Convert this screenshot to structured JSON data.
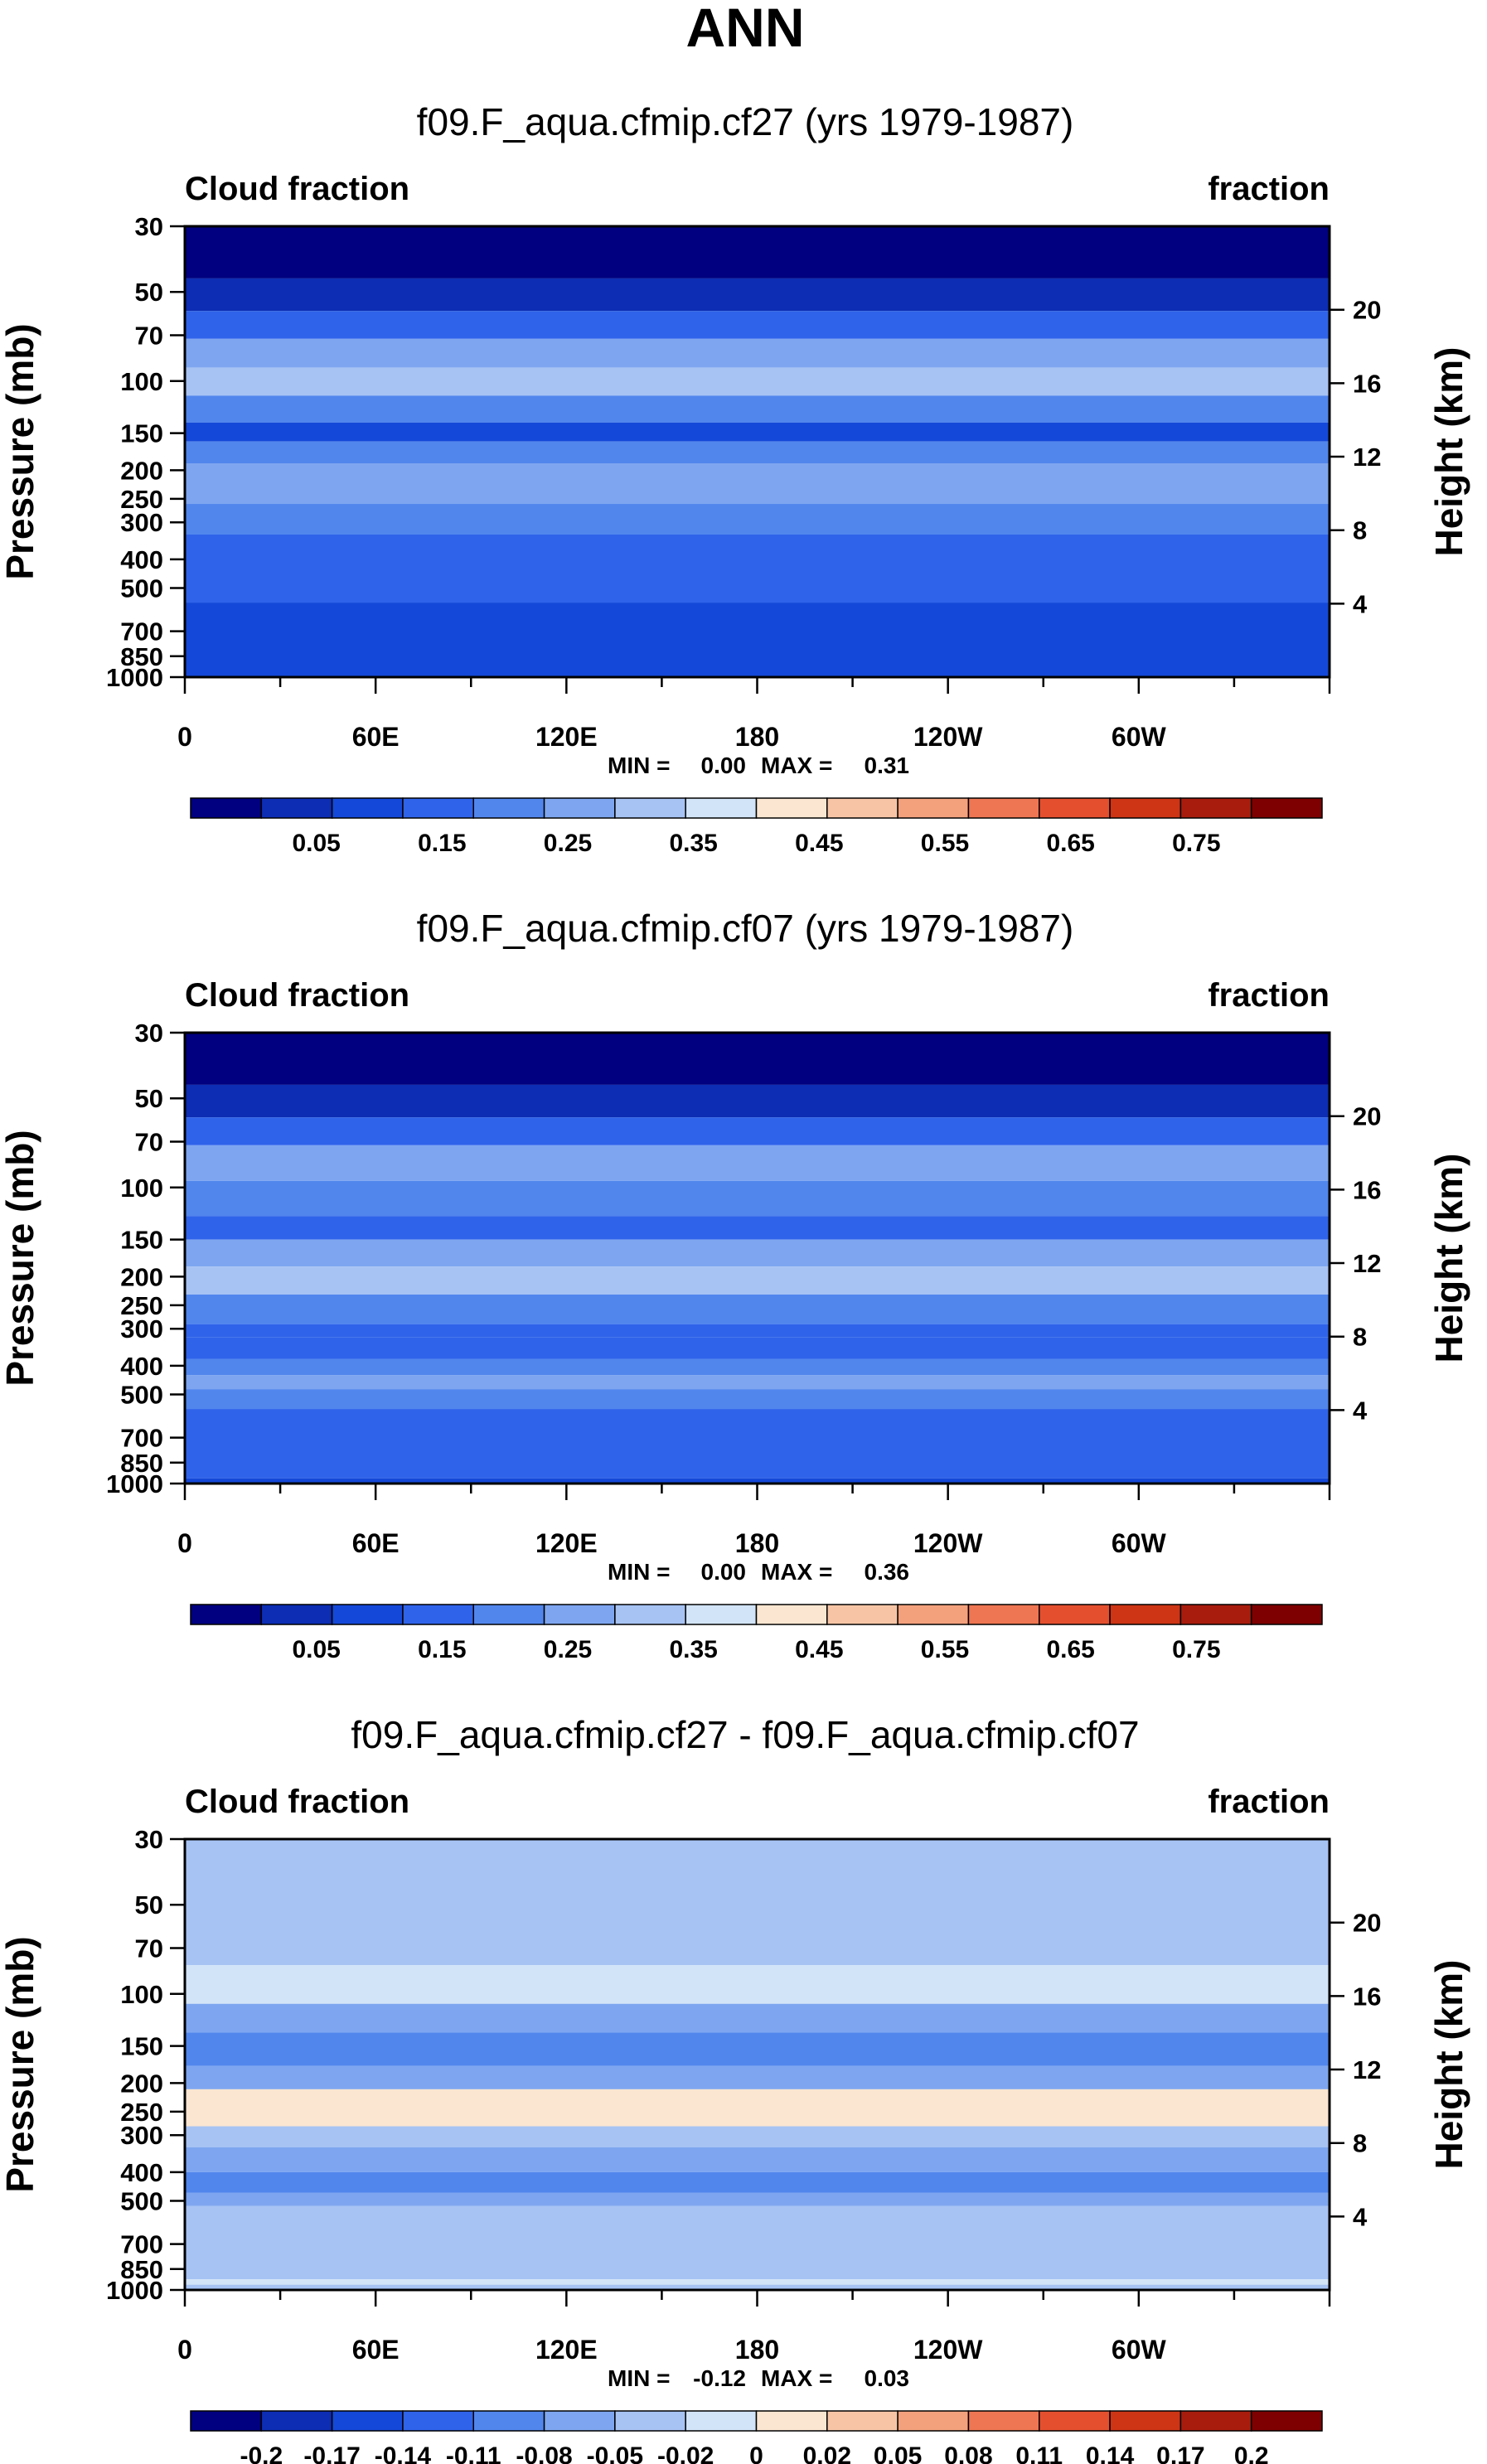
{
  "figure_title": "ANN",
  "chart_data": [
    {
      "type": "heatmap",
      "title": "f09.F_aqua.cfmip.cf27 (yrs 1979-1987)",
      "left_label": "Cloud fraction",
      "right_label": "fraction",
      "ylabel": "Pressure (mb)",
      "ylabel_right": "Height (km)",
      "x_ticks": [
        "0",
        "60E",
        "120E",
        "180",
        "120W",
        "60W"
      ],
      "y_ticks": [
        "30",
        "50",
        "70",
        "100",
        "150",
        "200",
        "250",
        "300",
        "400",
        "500",
        "700",
        "850",
        "1000"
      ],
      "height_ticks": [
        "20",
        "16",
        "12",
        "8",
        "4"
      ],
      "stats": {
        "min_label": "MIN =",
        "min": "0.00",
        "max_label": "MAX =",
        "max": "0.31"
      },
      "colorbar": {
        "labels": [
          "0.05",
          "0.15",
          "0.25",
          "0.35",
          "0.45",
          "0.55",
          "0.65",
          "0.75"
        ],
        "colors": [
          "#000080",
          "#0c2db4",
          "#1448d8",
          "#2f63ea",
          "#5186ed",
          "#7ea6f0",
          "#a7c3f4",
          "#d2e4f7",
          "#fbe6d1",
          "#f7c5a6",
          "#f3a17d",
          "#ee7652",
          "#e4502e",
          "#cd3515",
          "#a81c0d",
          "#7e0000"
        ]
      },
      "layers": [
        {
          "from": 30,
          "to": 45,
          "level": 0
        },
        {
          "from": 45,
          "to": 58,
          "level": 1
        },
        {
          "from": 58,
          "to": 72,
          "level": 3
        },
        {
          "from": 72,
          "to": 90,
          "level": 5
        },
        {
          "from": 90,
          "to": 112,
          "level": 6
        },
        {
          "from": 112,
          "to": 138,
          "level": 4
        },
        {
          "from": 138,
          "to": 160,
          "level": 2
        },
        {
          "from": 160,
          "to": 190,
          "level": 4
        },
        {
          "from": 190,
          "to": 260,
          "level": 5
        },
        {
          "from": 260,
          "to": 330,
          "level": 4
        },
        {
          "from": 330,
          "to": 560,
          "level": 3
        },
        {
          "from": 560,
          "to": 1000,
          "level": 2
        }
      ]
    },
    {
      "type": "heatmap",
      "title": "f09.F_aqua.cfmip.cf07 (yrs 1979-1987)",
      "left_label": "Cloud fraction",
      "right_label": "fraction",
      "ylabel": "Pressure (mb)",
      "ylabel_right": "Height (km)",
      "x_ticks": [
        "0",
        "60E",
        "120E",
        "180",
        "120W",
        "60W"
      ],
      "y_ticks": [
        "30",
        "50",
        "70",
        "100",
        "150",
        "200",
        "250",
        "300",
        "400",
        "500",
        "700",
        "850",
        "1000"
      ],
      "height_ticks": [
        "20",
        "16",
        "12",
        "8",
        "4"
      ],
      "stats": {
        "min_label": "MIN =",
        "min": "0.00",
        "max_label": "MAX =",
        "max": "0.36"
      },
      "colorbar": {
        "labels": [
          "0.05",
          "0.15",
          "0.25",
          "0.35",
          "0.45",
          "0.55",
          "0.65",
          "0.75"
        ],
        "colors": [
          "#000080",
          "#0c2db4",
          "#1448d8",
          "#2f63ea",
          "#5186ed",
          "#7ea6f0",
          "#a7c3f4",
          "#d2e4f7",
          "#fbe6d1",
          "#f7c5a6",
          "#f3a17d",
          "#ee7652",
          "#e4502e",
          "#cd3515",
          "#a81c0d",
          "#7e0000"
        ]
      },
      "layers": [
        {
          "from": 30,
          "to": 45,
          "level": 0
        },
        {
          "from": 45,
          "to": 58,
          "level": 1
        },
        {
          "from": 58,
          "to": 72,
          "level": 3
        },
        {
          "from": 72,
          "to": 95,
          "level": 5
        },
        {
          "from": 95,
          "to": 125,
          "level": 4
        },
        {
          "from": 125,
          "to": 150,
          "level": 3
        },
        {
          "from": 150,
          "to": 185,
          "level": 5
        },
        {
          "from": 185,
          "to": 230,
          "level": 6
        },
        {
          "from": 230,
          "to": 290,
          "level": 4
        },
        {
          "from": 290,
          "to": 320,
          "level": 3
        },
        {
          "from": 320,
          "to": 380,
          "level": 3
        },
        {
          "from": 380,
          "to": 430,
          "level": 4
        },
        {
          "from": 430,
          "to": 480,
          "level": 5
        },
        {
          "from": 480,
          "to": 560,
          "level": 4
        },
        {
          "from": 560,
          "to": 960,
          "level": 3
        },
        {
          "from": 960,
          "to": 1000,
          "level": 2
        }
      ]
    },
    {
      "type": "heatmap",
      "title": "f09.F_aqua.cfmip.cf27 - f09.F_aqua.cfmip.cf07",
      "left_label": "Cloud fraction",
      "right_label": "fraction",
      "ylabel": "Pressure (mb)",
      "ylabel_right": "Height (km)",
      "x_ticks": [
        "0",
        "60E",
        "120E",
        "180",
        "120W",
        "60W"
      ],
      "y_ticks": [
        "30",
        "50",
        "70",
        "100",
        "150",
        "200",
        "250",
        "300",
        "400",
        "500",
        "700",
        "850",
        "1000"
      ],
      "height_ticks": [
        "20",
        "16",
        "12",
        "8",
        "4"
      ],
      "stats": {
        "min_label": "MIN =",
        "min": "-0.12",
        "max_label": "MAX =",
        "max": "0.03"
      },
      "colorbar": {
        "labels": [
          "-0.2",
          "-0.17",
          "-0.14",
          "-0.11",
          "-0.08",
          "-0.05",
          "-0.02",
          "0",
          "0.02",
          "0.05",
          "0.08",
          "0.11",
          "0.14",
          "0.17",
          "0.2"
        ],
        "colors": [
          "#000080",
          "#0c2db4",
          "#1448d8",
          "#2f63ea",
          "#5186ed",
          "#7ea6f0",
          "#a7c3f4",
          "#d2e4f7",
          "#fbe6d1",
          "#f7c5a6",
          "#f3a17d",
          "#ee7652",
          "#e4502e",
          "#cd3515",
          "#a81c0d",
          "#7e0000"
        ]
      },
      "layers": [
        {
          "from": 30,
          "to": 80,
          "level": 6
        },
        {
          "from": 80,
          "to": 108,
          "level": 7
        },
        {
          "from": 108,
          "to": 135,
          "level": 5
        },
        {
          "from": 135,
          "to": 175,
          "level": 4
        },
        {
          "from": 175,
          "to": 210,
          "level": 5
        },
        {
          "from": 210,
          "to": 280,
          "level": 8
        },
        {
          "from": 280,
          "to": 330,
          "level": 6
        },
        {
          "from": 330,
          "to": 400,
          "level": 5
        },
        {
          "from": 400,
          "to": 470,
          "level": 4
        },
        {
          "from": 470,
          "to": 520,
          "level": 5
        },
        {
          "from": 520,
          "to": 920,
          "level": 6
        },
        {
          "from": 920,
          "to": 960,
          "level": 7
        },
        {
          "from": 960,
          "to": 1000,
          "level": 6
        }
      ]
    }
  ]
}
